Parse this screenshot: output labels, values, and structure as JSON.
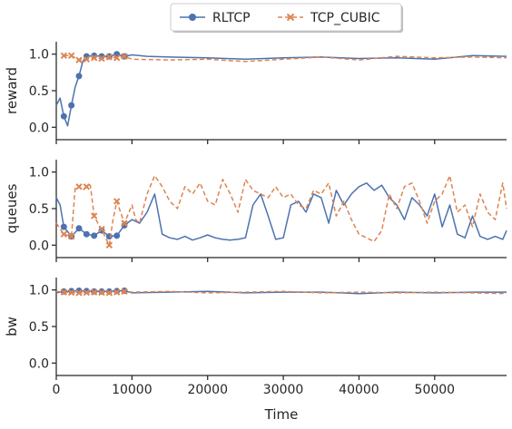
{
  "chart_data": {
    "type": "line",
    "xlabel": "Time",
    "x_ticks": [
      "0",
      "10000",
      "20000",
      "30000",
      "40000",
      "50000"
    ],
    "x_tick_values": [
      0,
      10000,
      20000,
      30000,
      40000,
      50000
    ],
    "xlim": [
      0,
      59500
    ],
    "legend": {
      "placement": "top-center",
      "entries": [
        {
          "name": "RLTCP",
          "color": "#4c72b0",
          "style": "solid",
          "marker": "circle"
        },
        {
          "name": "TCP_CUBIC",
          "color": "#dd8452",
          "style": "dashed",
          "marker": "x"
        }
      ]
    },
    "panels": [
      {
        "ylabel": "reward",
        "ylim": [
          -0.17,
          1.17
        ],
        "y_ticks": [
          "0.0",
          "0.5",
          "1.0"
        ],
        "y_tick_values": [
          0,
          0.5,
          1.0
        ],
        "series": [
          {
            "name": "RLTCP",
            "x": [
              0,
              500,
              1000,
              1500,
              2000,
              2500,
              3000,
              3500,
              4000,
              5000,
              6000,
              7000,
              8000,
              9000,
              10000,
              12000,
              15000,
              20000,
              25000,
              30000,
              35000,
              40000,
              45000,
              50000,
              55000,
              59500
            ],
            "y": [
              0.3,
              0.4,
              0.15,
              0.02,
              0.3,
              0.55,
              0.7,
              0.9,
              0.97,
              0.98,
              0.97,
              0.97,
              1.0,
              0.97,
              0.99,
              0.97,
              0.96,
              0.95,
              0.93,
              0.95,
              0.96,
              0.94,
              0.95,
              0.93,
              0.98,
              0.97
            ]
          },
          {
            "name": "TCP_CUBIC",
            "x": [
              1000,
              2000,
              3000,
              4000,
              5000,
              6000,
              7000,
              8000,
              9000,
              10000,
              15000,
              20000,
              25000,
              30000,
              35000,
              40000,
              45000,
              50000,
              55000,
              59500
            ],
            "y": [
              0.98,
              0.98,
              0.92,
              0.93,
              0.95,
              0.94,
              0.96,
              0.95,
              0.97,
              0.93,
              0.92,
              0.93,
              0.9,
              0.93,
              0.96,
              0.92,
              0.97,
              0.95,
              0.96,
              0.95
            ]
          }
        ],
        "marker_x": [
          1000,
          2000,
          3000,
          4000,
          5000,
          6000,
          7000,
          8000,
          9000
        ]
      },
      {
        "ylabel": "queues",
        "ylim": [
          -0.17,
          1.17
        ],
        "y_ticks": [
          "0.0",
          "0.5",
          "1.0"
        ],
        "y_tick_values": [
          0,
          0.5,
          1.0
        ],
        "series": [
          {
            "name": "RLTCP",
            "x": [
              0,
              500,
              1000,
              2000,
              3000,
              4000,
              5000,
              6000,
              7000,
              8000,
              9000,
              10000,
              11000,
              12000,
              13000,
              14000,
              15000,
              16000,
              17000,
              18000,
              19000,
              20000,
              21000,
              22000,
              23000,
              24000,
              25000,
              26000,
              27000,
              28000,
              29000,
              30000,
              31000,
              32000,
              33000,
              34000,
              35000,
              36000,
              37000,
              38000,
              39000,
              40000,
              41000,
              42000,
              43000,
              44000,
              45000,
              46000,
              47000,
              48000,
              49000,
              50000,
              51000,
              52000,
              53000,
              54000,
              55000,
              56000,
              57000,
              58000,
              59000,
              59500
            ],
            "y": [
              0.65,
              0.55,
              0.25,
              0.12,
              0.23,
              0.15,
              0.13,
              0.2,
              0.12,
              0.13,
              0.27,
              0.35,
              0.3,
              0.45,
              0.7,
              0.15,
              0.1,
              0.08,
              0.12,
              0.07,
              0.1,
              0.14,
              0.1,
              0.08,
              0.07,
              0.08,
              0.1,
              0.55,
              0.7,
              0.4,
              0.08,
              0.1,
              0.55,
              0.6,
              0.45,
              0.7,
              0.65,
              0.3,
              0.75,
              0.55,
              0.7,
              0.8,
              0.85,
              0.75,
              0.82,
              0.65,
              0.55,
              0.35,
              0.65,
              0.55,
              0.4,
              0.7,
              0.25,
              0.55,
              0.15,
              0.1,
              0.4,
              0.12,
              0.08,
              0.12,
              0.08,
              0.2
            ]
          },
          {
            "name": "TCP_CUBIC",
            "x": [
              0,
              1000,
              2000,
              2500,
              3000,
              3500,
              4000,
              4500,
              5000,
              5500,
              6000,
              6500,
              7000,
              7500,
              8000,
              9000,
              10000,
              10500,
              11000,
              12000,
              13000,
              14000,
              15000,
              16000,
              17000,
              18000,
              19000,
              20000,
              21000,
              22000,
              23000,
              24000,
              25000,
              26000,
              27000,
              28000,
              29000,
              30000,
              31000,
              32000,
              33000,
              34000,
              35000,
              36000,
              37000,
              38000,
              39000,
              40000,
              41000,
              42000,
              43000,
              44000,
              45000,
              46000,
              47000,
              48000,
              49000,
              50000,
              51000,
              52000,
              53000,
              54000,
              55000,
              56000,
              57000,
              58000,
              59000,
              59500
            ],
            "y": [
              0.3,
              0.15,
              0.12,
              0.78,
              0.8,
              0.75,
              0.8,
              0.82,
              0.4,
              0.3,
              0.22,
              0.1,
              0.0,
              0.35,
              0.6,
              0.3,
              0.55,
              0.35,
              0.3,
              0.7,
              0.95,
              0.8,
              0.6,
              0.5,
              0.8,
              0.7,
              0.85,
              0.6,
              0.55,
              0.9,
              0.7,
              0.45,
              0.9,
              0.75,
              0.7,
              0.65,
              0.8,
              0.65,
              0.7,
              0.55,
              0.5,
              0.75,
              0.7,
              0.85,
              0.4,
              0.6,
              0.35,
              0.15,
              0.1,
              0.05,
              0.2,
              0.7,
              0.5,
              0.8,
              0.85,
              0.6,
              0.3,
              0.6,
              0.7,
              0.95,
              0.45,
              0.55,
              0.25,
              0.7,
              0.45,
              0.35,
              0.85,
              0.5
            ]
          }
        ],
        "marker_x": [
          1000,
          2000,
          3000,
          4000,
          5000,
          6000,
          7000,
          8000,
          9000
        ]
      },
      {
        "ylabel": "bw",
        "ylim": [
          -0.17,
          1.17
        ],
        "y_ticks": [
          "0.0",
          "0.5",
          "1.0"
        ],
        "y_tick_values": [
          0,
          0.5,
          1.0
        ],
        "series": [
          {
            "name": "RLTCP",
            "x": [
              0,
              1000,
              3000,
              5000,
              7000,
              9000,
              10000,
              15000,
              20000,
              25000,
              30000,
              35000,
              40000,
              45000,
              50000,
              55000,
              59500
            ],
            "y": [
              0.96,
              0.98,
              0.99,
              0.98,
              0.98,
              0.99,
              0.96,
              0.97,
              0.98,
              0.96,
              0.97,
              0.97,
              0.95,
              0.97,
              0.96,
              0.97,
              0.97
            ]
          },
          {
            "name": "TCP_CUBIC",
            "x": [
              0,
              1000,
              3000,
              5000,
              7000,
              9000,
              10000,
              15000,
              20000,
              25000,
              30000,
              35000,
              40000,
              45000,
              50000,
              55000,
              59500
            ],
            "y": [
              0.98,
              0.97,
              0.96,
              0.97,
              0.96,
              0.98,
              0.97,
              0.98,
              0.96,
              0.97,
              0.98,
              0.96,
              0.97,
              0.96,
              0.97,
              0.96,
              0.95
            ]
          }
        ],
        "marker_x": [
          1000,
          2000,
          3000,
          4000,
          5000,
          6000,
          7000,
          8000,
          9000
        ]
      }
    ]
  }
}
